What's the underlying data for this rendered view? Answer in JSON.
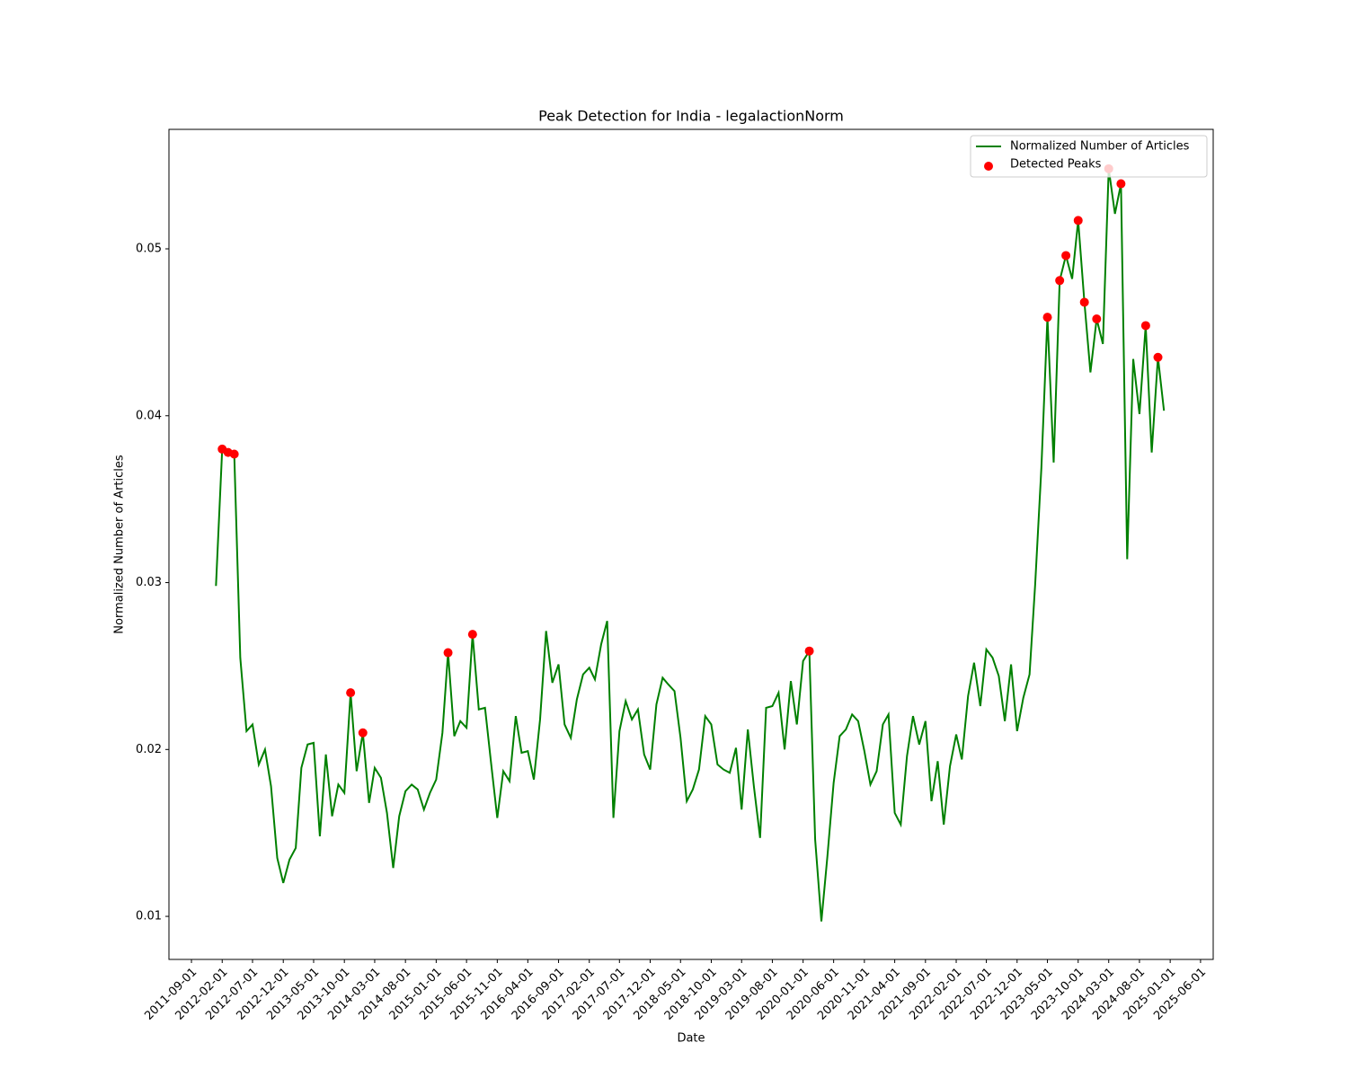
{
  "chart_data": {
    "type": "line",
    "title": "Peak Detection for India - legalactionNorm",
    "x_label": "Date",
    "y_label": "Normalized Number of Articles",
    "x": [
      "2012-01-01",
      "2012-02-01",
      "2012-03-01",
      "2012-04-01",
      "2012-05-01",
      "2012-06-01",
      "2012-07-01",
      "2012-08-01",
      "2012-09-01",
      "2012-10-01",
      "2012-11-01",
      "2012-12-01",
      "2013-01-01",
      "2013-02-01",
      "2013-03-01",
      "2013-04-01",
      "2013-05-01",
      "2013-06-01",
      "2013-07-01",
      "2013-08-01",
      "2013-09-01",
      "2013-10-01",
      "2013-11-01",
      "2013-12-01",
      "2014-01-01",
      "2014-02-01",
      "2014-03-01",
      "2014-04-01",
      "2014-05-01",
      "2014-06-01",
      "2014-07-01",
      "2014-08-01",
      "2014-09-01",
      "2014-10-01",
      "2014-11-01",
      "2014-12-01",
      "2015-01-01",
      "2015-02-01",
      "2015-03-01",
      "2015-04-01",
      "2015-05-01",
      "2015-06-01",
      "2015-07-01",
      "2015-08-01",
      "2015-09-01",
      "2015-10-01",
      "2015-11-01",
      "2015-12-01",
      "2016-01-01",
      "2016-02-01",
      "2016-03-01",
      "2016-04-01",
      "2016-05-01",
      "2016-06-01",
      "2016-07-01",
      "2016-08-01",
      "2016-09-01",
      "2016-10-01",
      "2016-11-01",
      "2016-12-01",
      "2017-01-01",
      "2017-02-01",
      "2017-03-01",
      "2017-04-01",
      "2017-05-01",
      "2017-06-01",
      "2017-07-01",
      "2017-08-01",
      "2017-09-01",
      "2017-10-01",
      "2017-11-01",
      "2017-12-01",
      "2018-01-01",
      "2018-02-01",
      "2018-03-01",
      "2018-04-01",
      "2018-05-01",
      "2018-06-01",
      "2018-07-01",
      "2018-08-01",
      "2018-09-01",
      "2018-10-01",
      "2018-11-01",
      "2018-12-01",
      "2019-01-01",
      "2019-02-01",
      "2019-03-01",
      "2019-04-01",
      "2019-05-01",
      "2019-06-01",
      "2019-07-01",
      "2019-08-01",
      "2019-09-01",
      "2019-10-01",
      "2019-11-01",
      "2019-12-01",
      "2020-01-01",
      "2020-02-01",
      "2020-03-01",
      "2020-04-01",
      "2020-05-01",
      "2020-06-01",
      "2020-07-01",
      "2020-08-01",
      "2020-09-01",
      "2020-10-01",
      "2020-11-01",
      "2020-12-01",
      "2021-01-01",
      "2021-02-01",
      "2021-03-01",
      "2021-04-01",
      "2021-05-01",
      "2021-06-01",
      "2021-07-01",
      "2021-08-01",
      "2021-09-01",
      "2021-10-01",
      "2021-11-01",
      "2021-12-01",
      "2022-01-01",
      "2022-02-01",
      "2022-03-01",
      "2022-04-01",
      "2022-05-01",
      "2022-06-01",
      "2022-07-01",
      "2022-08-01",
      "2022-09-01",
      "2022-10-01",
      "2022-11-01",
      "2022-12-01",
      "2023-01-01",
      "2023-02-01",
      "2023-03-01",
      "2023-04-01",
      "2023-05-01",
      "2023-06-01",
      "2023-07-01",
      "2023-08-01",
      "2023-09-01",
      "2023-10-01",
      "2023-11-01",
      "2023-12-01",
      "2024-01-01",
      "2024-02-01",
      "2024-03-01",
      "2024-04-01",
      "2024-05-01",
      "2024-06-01",
      "2024-07-01",
      "2024-08-01",
      "2024-09-01",
      "2024-10-01",
      "2024-11-01",
      "2024-12-01"
    ],
    "series": [
      {
        "name": "Normalized Number of Articles",
        "color": "#008000",
        "type": "line",
        "values": [
          0.0298,
          0.038,
          0.0378,
          0.0377,
          0.0255,
          0.0211,
          0.0215,
          0.0191,
          0.02,
          0.0178,
          0.0135,
          0.012,
          0.0134,
          0.0141,
          0.0189,
          0.0203,
          0.0204,
          0.0148,
          0.0197,
          0.016,
          0.0179,
          0.0174,
          0.0234,
          0.0187,
          0.021,
          0.0168,
          0.0189,
          0.0183,
          0.0162,
          0.0129,
          0.016,
          0.0175,
          0.0179,
          0.0176,
          0.0164,
          0.0174,
          0.0182,
          0.021,
          0.0258,
          0.0208,
          0.0217,
          0.0213,
          0.0269,
          0.0224,
          0.0225,
          0.0192,
          0.0159,
          0.0187,
          0.0181,
          0.022,
          0.0198,
          0.0199,
          0.0182,
          0.0218,
          0.0271,
          0.024,
          0.0251,
          0.0215,
          0.0207,
          0.023,
          0.0245,
          0.0249,
          0.0242,
          0.0263,
          0.0277,
          0.0159,
          0.0211,
          0.0229,
          0.0218,
          0.0224,
          0.0197,
          0.0188,
          0.0227,
          0.0243,
          0.0239,
          0.0235,
          0.0207,
          0.0169,
          0.0176,
          0.0188,
          0.022,
          0.0215,
          0.0191,
          0.0188,
          0.0186,
          0.0201,
          0.0164,
          0.0212,
          0.0178,
          0.0147,
          0.0225,
          0.0226,
          0.0234,
          0.02,
          0.0241,
          0.0215,
          0.0253,
          0.0259,
          0.0146,
          0.0097,
          0.0136,
          0.018,
          0.0208,
          0.0212,
          0.0221,
          0.0217,
          0.0199,
          0.0179,
          0.0187,
          0.0215,
          0.0221,
          0.0162,
          0.0155,
          0.0196,
          0.022,
          0.0203,
          0.0217,
          0.0169,
          0.0193,
          0.0155,
          0.019,
          0.0209,
          0.0194,
          0.0232,
          0.0252,
          0.0226,
          0.026,
          0.0255,
          0.0244,
          0.0217,
          0.0251,
          0.0211,
          0.0231,
          0.0245,
          0.0299,
          0.0369,
          0.0459,
          0.0372,
          0.0481,
          0.0496,
          0.0482,
          0.0517,
          0.0468,
          0.0426,
          0.0458,
          0.0443,
          0.0548,
          0.0521,
          0.0539,
          0.0314,
          0.0434,
          0.0401,
          0.0454,
          0.0378,
          0.0435,
          0.0403
        ]
      },
      {
        "name": "Detected Peaks",
        "color": "#ff0000",
        "type": "scatter",
        "x": [
          "2012-02-01",
          "2012-03-01",
          "2012-04-01",
          "2013-11-01",
          "2014-01-01",
          "2015-03-01",
          "2015-07-01",
          "2020-02-01",
          "2023-05-01",
          "2023-07-01",
          "2023-08-01",
          "2023-10-01",
          "2023-11-01",
          "2024-01-01",
          "2024-03-01",
          "2024-05-01",
          "2024-09-01",
          "2024-11-01"
        ],
        "values": [
          0.038,
          0.0378,
          0.0377,
          0.0234,
          0.021,
          0.0258,
          0.0269,
          0.0259,
          0.0459,
          0.0481,
          0.0496,
          0.0517,
          0.0468,
          0.0458,
          0.0548,
          0.0539,
          0.0454,
          0.0435
        ]
      }
    ],
    "xlim": [
      "2011-05-12",
      "2025-08-03"
    ],
    "xticks": [
      "2011-09-01",
      "2012-02-01",
      "2012-07-01",
      "2012-12-01",
      "2013-05-01",
      "2013-10-01",
      "2014-03-01",
      "2014-08-01",
      "2015-01-01",
      "2015-06-01",
      "2015-11-01",
      "2016-04-01",
      "2016-09-01",
      "2017-02-01",
      "2017-07-01",
      "2017-12-01",
      "2018-05-01",
      "2018-10-01",
      "2019-03-01",
      "2019-08-01",
      "2020-01-01",
      "2020-06-01",
      "2020-11-01",
      "2021-04-01",
      "2021-09-01",
      "2022-02-01",
      "2022-07-01",
      "2022-12-01",
      "2023-05-01",
      "2023-10-01",
      "2024-03-01",
      "2024-08-01",
      "2025-01-01",
      "2025-06-01"
    ],
    "ylim": [
      0.00742,
      0.05716
    ],
    "yticks": [
      0.01,
      0.02,
      0.03,
      0.04,
      0.05
    ],
    "grid": false,
    "legend": "upper right"
  }
}
